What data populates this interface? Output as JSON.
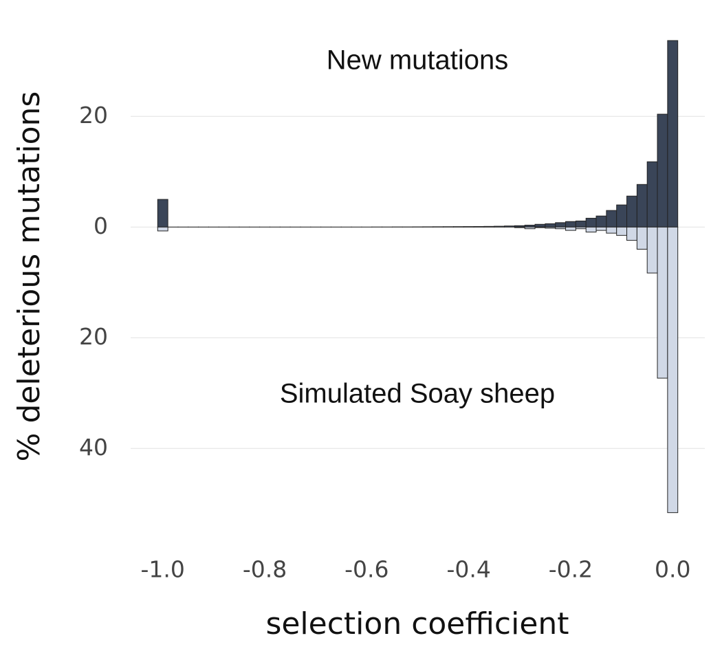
{
  "chart_data": {
    "type": "histogram",
    "xlabel": "selection coefficient",
    "ylabel": "% deleterious mutations",
    "bins": [
      -1.01,
      -0.99,
      -0.97,
      -0.95,
      -0.93,
      -0.91,
      -0.89,
      -0.87,
      -0.85,
      -0.83,
      -0.81,
      -0.79,
      -0.77,
      -0.75,
      -0.73,
      -0.71,
      -0.69,
      -0.67,
      -0.65,
      -0.63,
      -0.61,
      -0.59,
      -0.57,
      -0.55,
      -0.53,
      -0.51,
      -0.49,
      -0.47,
      -0.45,
      -0.43,
      -0.41,
      -0.39,
      -0.37,
      -0.35,
      -0.33,
      -0.31,
      -0.29,
      -0.27,
      -0.25,
      -0.23,
      -0.21,
      -0.19,
      -0.17,
      -0.15,
      -0.13,
      -0.11,
      -0.09,
      -0.07,
      -0.05,
      -0.03,
      -0.01,
      0.01
    ],
    "series": [
      {
        "name": "New mutations",
        "color": "#3a4558",
        "values": [
          5.0,
          0.01,
          0.01,
          0.01,
          0.01,
          0.01,
          0.01,
          0.01,
          0.01,
          0.01,
          0.01,
          0.01,
          0.01,
          0.01,
          0.01,
          0.01,
          0.01,
          0.01,
          0.01,
          0.01,
          0.01,
          0.02,
          0.02,
          0.03,
          0.03,
          0.04,
          0.05,
          0.06,
          0.07,
          0.08,
          0.09,
          0.1,
          0.12,
          0.15,
          0.2,
          0.25,
          0.35,
          0.5,
          0.6,
          0.8,
          1.0,
          1.1,
          1.6,
          2.0,
          3.0,
          4.0,
          5.6,
          7.7,
          11.8,
          20.4,
          33.7
        ]
      },
      {
        "name": "Simulated Soay sheep",
        "color": "#d0d8e6",
        "values": [
          -0.7,
          0,
          0,
          0,
          0,
          0,
          0,
          0,
          0,
          0,
          0,
          0,
          0,
          0,
          0,
          0,
          0,
          0,
          0,
          0,
          0,
          0,
          0,
          0,
          0,
          0,
          0,
          0,
          0,
          0,
          0,
          0,
          0,
          0,
          0,
          -0.1,
          -0.3,
          -0.1,
          -0.2,
          -0.3,
          -0.6,
          -0.3,
          -0.9,
          -0.6,
          -1.1,
          -1.5,
          -2.4,
          -4.0,
          -8.3,
          -27.3,
          -51.6
        ]
      }
    ],
    "xlim": [
      -1.063,
      0.063
    ],
    "xticks": [
      {
        "value": -1.0,
        "label": "-1.0"
      },
      {
        "value": -0.8,
        "label": "-0.8"
      },
      {
        "value": -0.6,
        "label": "-0.6"
      },
      {
        "value": -0.4,
        "label": "-0.4"
      },
      {
        "value": -0.2,
        "label": "-0.2"
      },
      {
        "value": 0.0,
        "label": "0.0"
      }
    ],
    "ylim": [
      -57,
      34
    ],
    "yticks": [
      {
        "value": -40,
        "label": "40"
      },
      {
        "value": -20,
        "label": "20"
      },
      0,
      20
    ],
    "grid": true
  }
}
